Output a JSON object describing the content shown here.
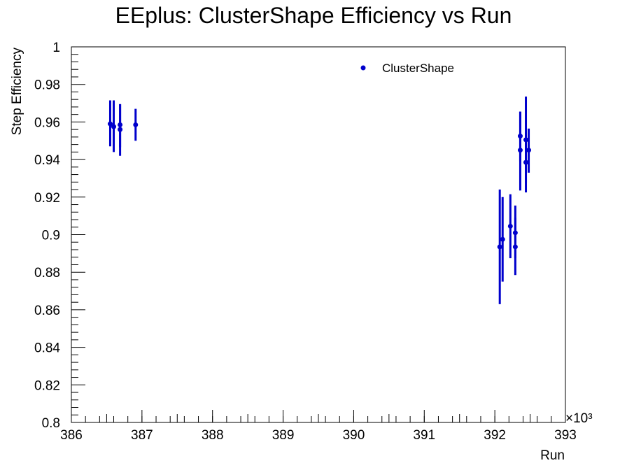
{
  "chart_data": {
    "type": "scatter",
    "title": "EEplus: ClusterShape Efficiency vs Run",
    "xlabel": "Run",
    "ylabel": "Step Efficiency",
    "x_multiplier_label": "×10³",
    "xlim": [
      386,
      393
    ],
    "ylim": [
      0.8,
      1.0
    ],
    "x_major_ticks": [
      386,
      387,
      388,
      389,
      390,
      391,
      392,
      393
    ],
    "y_major_ticks": [
      0.8,
      0.82,
      0.84,
      0.86,
      0.88,
      0.9,
      0.92,
      0.94,
      0.96,
      0.98,
      1
    ],
    "y_tick_labels": [
      "0.8",
      "0.82",
      "0.84",
      "0.86",
      "0.88",
      "0.9",
      "0.92",
      "0.94",
      "0.96",
      "0.98",
      "1"
    ],
    "x_tick_labels": [
      "386",
      "387",
      "388",
      "389",
      "390",
      "391",
      "392",
      "393"
    ],
    "legend": {
      "position": "top-right",
      "entries": [
        "ClusterShape"
      ]
    },
    "color": "#0000cc",
    "series": [
      {
        "name": "ClusterShape",
        "points": [
          {
            "x": 386.55,
            "y": 0.959,
            "ylo": 0.947,
            "yhi": 0.9715
          },
          {
            "x": 386.6,
            "y": 0.9575,
            "ylo": 0.944,
            "yhi": 0.9715
          },
          {
            "x": 386.69,
            "y": 0.9585,
            "ylo": 0.9465,
            "yhi": 0.9695
          },
          {
            "x": 386.69,
            "y": 0.956,
            "ylo": 0.942,
            "yhi": 0.9695
          },
          {
            "x": 386.91,
            "y": 0.9585,
            "ylo": 0.95,
            "yhi": 0.967
          },
          {
            "x": 392.07,
            "y": 0.8935,
            "ylo": 0.863,
            "yhi": 0.924
          },
          {
            "x": 392.11,
            "y": 0.8975,
            "ylo": 0.875,
            "yhi": 0.92
          },
          {
            "x": 392.22,
            "y": 0.9045,
            "ylo": 0.8875,
            "yhi": 0.9215
          },
          {
            "x": 392.29,
            "y": 0.901,
            "ylo": 0.8875,
            "yhi": 0.9155
          },
          {
            "x": 392.29,
            "y": 0.8935,
            "ylo": 0.8785,
            "yhi": 0.909
          },
          {
            "x": 392.36,
            "y": 0.9525,
            "ylo": 0.939,
            "yhi": 0.9655
          },
          {
            "x": 392.36,
            "y": 0.945,
            "ylo": 0.9235,
            "yhi": 0.9655
          },
          {
            "x": 392.44,
            "y": 0.9505,
            "ylo": 0.9275,
            "yhi": 0.9735
          },
          {
            "x": 392.44,
            "y": 0.9385,
            "ylo": 0.9225,
            "yhi": 0.9545
          },
          {
            "x": 392.48,
            "y": 0.945,
            "ylo": 0.933,
            "yhi": 0.9565
          }
        ]
      }
    ]
  }
}
